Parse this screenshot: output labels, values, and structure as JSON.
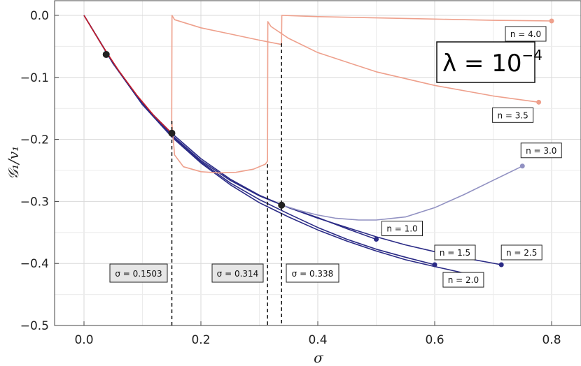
{
  "chart_data": {
    "type": "line",
    "title": "",
    "xlabel": "σ",
    "ylabel": "𝒢₁/v₁",
    "xlim": [
      -0.05,
      0.83
    ],
    "ylim": [
      -0.5,
      0.02
    ],
    "xticks": [
      0.0,
      0.2,
      0.4,
      0.6,
      0.8
    ],
    "xtick_labels": [
      "0.0",
      "0.2",
      "0.4",
      "0.6",
      "0.8"
    ],
    "yticks": [
      0.0,
      -0.1,
      -0.2,
      -0.3,
      -0.4,
      -0.5
    ],
    "ytick_labels": [
      "0.0",
      "−0.1",
      "−0.2",
      "−0.3",
      "−0.4",
      "−0.5"
    ],
    "grid": true,
    "lambda_prefix": "λ = 10",
    "lambda_exponent": "−4",
    "colors": {
      "dark": "#2b2b86",
      "mid": "#9191c2",
      "salmon": "#eea08c",
      "red": "#c81e28",
      "point": "#222222"
    },
    "series": [
      {
        "name": "n = 1.0",
        "color": "#2b2b86",
        "x": [
          0,
          0.05,
          0.1,
          0.15,
          0.2,
          0.25,
          0.3,
          0.35,
          0.4,
          0.45,
          0.5
        ],
        "y": [
          0,
          -0.077,
          -0.142,
          -0.193,
          -0.234,
          -0.266,
          -0.291,
          -0.31,
          -0.326,
          -0.344,
          -0.361
        ]
      },
      {
        "name": "n = 1.5",
        "color": "#2b2b86",
        "x": [
          0,
          0.05,
          0.1,
          0.15,
          0.2,
          0.25,
          0.3,
          0.35,
          0.4,
          0.45,
          0.5,
          0.55,
          0.6
        ],
        "y": [
          0,
          -0.078,
          -0.143,
          -0.194,
          -0.236,
          -0.27,
          -0.297,
          -0.32,
          -0.342,
          -0.361,
          -0.377,
          -0.39,
          -0.402
        ]
      },
      {
        "name": "n = 2.0",
        "color": "#2b2b86",
        "x": [
          0,
          0.05,
          0.1,
          0.15,
          0.2,
          0.25,
          0.3,
          0.35,
          0.4,
          0.45,
          0.5,
          0.55,
          0.6,
          0.667
        ],
        "y": [
          0,
          -0.078,
          -0.144,
          -0.196,
          -0.238,
          -0.273,
          -0.302,
          -0.325,
          -0.346,
          -0.364,
          -0.38,
          -0.394,
          -0.405,
          -0.419
        ]
      },
      {
        "name": "n = 2.5",
        "color": "#2b2b86",
        "x": [
          0,
          0.05,
          0.1,
          0.15,
          0.2,
          0.25,
          0.3,
          0.35,
          0.4,
          0.45,
          0.5,
          0.55,
          0.6,
          0.65,
          0.714
        ],
        "y": [
          0,
          -0.078,
          -0.143,
          -0.19,
          -0.231,
          -0.264,
          -0.29,
          -0.31,
          -0.327,
          -0.342,
          -0.357,
          -0.37,
          -0.381,
          -0.391,
          -0.402
        ]
      },
      {
        "name": "n = 3.0",
        "color": "#9191c2",
        "x": [
          0.338,
          0.37,
          0.4,
          0.43,
          0.47,
          0.5,
          0.55,
          0.6,
          0.65,
          0.7,
          0.75
        ],
        "y": [
          -0.306,
          -0.315,
          -0.322,
          -0.327,
          -0.33,
          -0.33,
          -0.325,
          -0.31,
          -0.289,
          -0.266,
          -0.243
        ]
      },
      {
        "name": "n = 3.5",
        "color": "#eea08c",
        "x": [
          0.15,
          0.155,
          0.17,
          0.2,
          0.23,
          0.26,
          0.29,
          0.31,
          0.314,
          0.3145,
          0.32,
          0.35,
          0.4,
          0.5,
          0.6,
          0.7,
          0.778
        ],
        "y": [
          -0.17,
          -0.225,
          -0.244,
          -0.252,
          -0.254,
          -0.253,
          -0.248,
          -0.24,
          -0.235,
          -0.01,
          -0.018,
          -0.037,
          -0.06,
          -0.091,
          -0.113,
          -0.13,
          -0.14
        ]
      },
      {
        "name": "n = 4.0",
        "color": "#eea08c",
        "x": [
          0.15,
          0.1505,
          0.155,
          0.2,
          0.25,
          0.3,
          0.338,
          0.3385,
          0.4,
          0.5,
          0.6,
          0.7,
          0.8
        ],
        "y": [
          -0.18,
          0.0,
          -0.007,
          -0.02,
          -0.03,
          -0.04,
          -0.047,
          0.0,
          -0.002,
          -0.004,
          -0.006,
          -0.008,
          -0.009
        ]
      },
      {
        "name": "",
        "color": "#c81e28",
        "x": [
          0,
          0.03,
          0.06,
          0.09,
          0.12,
          0.15
        ],
        "y": [
          0,
          -0.047,
          -0.09,
          -0.128,
          -0.162,
          -0.19
        ]
      }
    ],
    "series_labels": [
      {
        "text": "n = 1.0",
        "at": [
          0.5,
          -0.361
        ]
      },
      {
        "text": "n = 1.5",
        "at": [
          0.6,
          -0.402
        ]
      },
      {
        "text": "n = 2.0",
        "at": [
          0.667,
          -0.419
        ]
      },
      {
        "text": "n = 2.5",
        "at": [
          0.714,
          -0.402
        ]
      },
      {
        "text": "n = 3.0",
        "at": [
          0.75,
          -0.243
        ]
      },
      {
        "text": "n = 3.5",
        "at": [
          0.778,
          -0.14
        ]
      },
      {
        "text": "n = 4.0",
        "at": [
          0.8,
          -0.009
        ]
      }
    ],
    "markers": [
      {
        "x": 0.038,
        "y": -0.063
      },
      {
        "x": 0.1503,
        "y": -0.19
      },
      {
        "x": 0.338,
        "y": -0.306
      }
    ],
    "vlines": [
      {
        "x": 0.1503,
        "from": -0.5,
        "to": -0.17
      },
      {
        "x": 0.314,
        "from": -0.5,
        "to": -0.24
      },
      {
        "x": 0.338,
        "from": -0.5,
        "to": -0.045
      }
    ],
    "annotations": [
      "σ = 0.1503",
      "σ = 0.314",
      "σ = 0.338"
    ]
  }
}
